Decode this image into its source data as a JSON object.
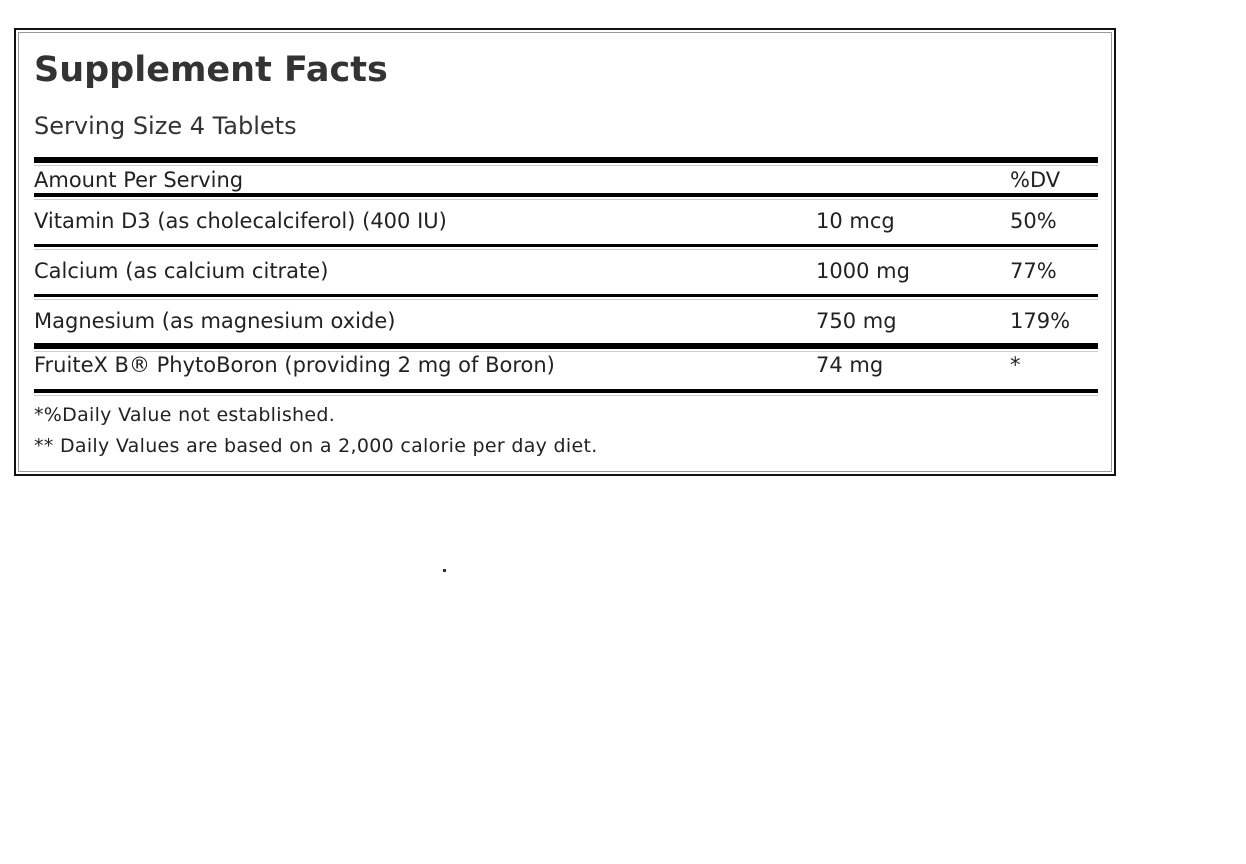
{
  "label": {
    "title": "Supplement Facts",
    "serving_size": "Serving Size 4 Tablets",
    "header": {
      "amount": "Amount Per Serving",
      "dv": "%DV"
    },
    "rows": [
      {
        "name": "Vitamin D3 (as cholecalciferol) (400 IU)",
        "amount": "10 mcg",
        "dv": "50%"
      },
      {
        "name": "Calcium (as calcium citrate)",
        "amount": "1000 mg",
        "dv": "77%"
      },
      {
        "name": "Magnesium (as magnesium oxide)",
        "amount": "750 mg",
        "dv": "179%"
      },
      {
        "name": "FruiteX B® PhytoBoron (providing 2 mg of Boron)",
        "amount": "74 mg",
        "dv": "*"
      }
    ],
    "footnotes": [
      "*%Daily Value not established.",
      "** Daily Values are based on a 2,000 calorie per day diet."
    ]
  }
}
